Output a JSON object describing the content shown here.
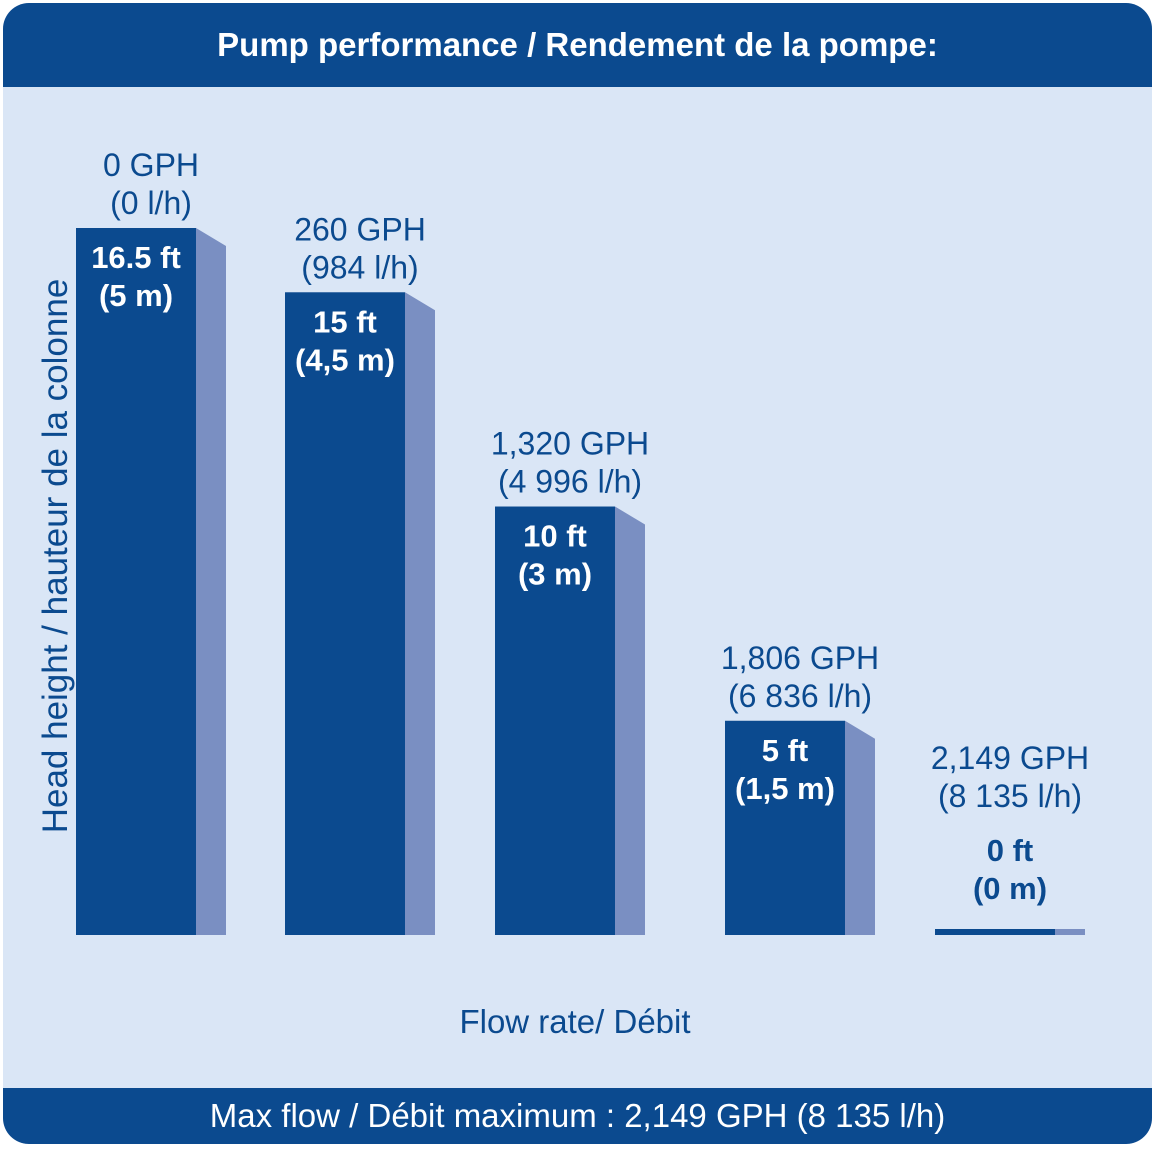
{
  "title": "Pump performance / Rendement de la pompe:",
  "footer": "Max flow / Débit maximum : 2,149 GPH (8 135 l/h)",
  "colors": {
    "bar_front": "#0b4a8f",
    "bar_side": "#7a8fc2",
    "panel": "#dae6f6"
  },
  "chart_data": {
    "type": "bar",
    "xlabel": "Flow rate/ Débit",
    "ylabel": "Head height / hauteur de la colonne",
    "grid": false,
    "legend": "none",
    "ylim": [
      0,
      16.5
    ],
    "categories": [
      "0 GPH",
      "260 GPH",
      "1,320 GPH",
      "1,806 GPH",
      "2,149 GPH"
    ],
    "categories_metric": [
      "(0 l/h)",
      "(984 l/h)",
      "(4 996 l/h)",
      "(6 836 l/h)",
      "(8 135 l/h)"
    ],
    "values": [
      16.5,
      15,
      10,
      5,
      0
    ],
    "value_labels": [
      "16.5 ft",
      "15 ft",
      "10 ft",
      "5 ft",
      "0 ft"
    ],
    "value_labels_metric": [
      "(5 m)",
      "(4,5 m)",
      "(3 m)",
      "(1,5 m)",
      "(0 m)"
    ]
  }
}
